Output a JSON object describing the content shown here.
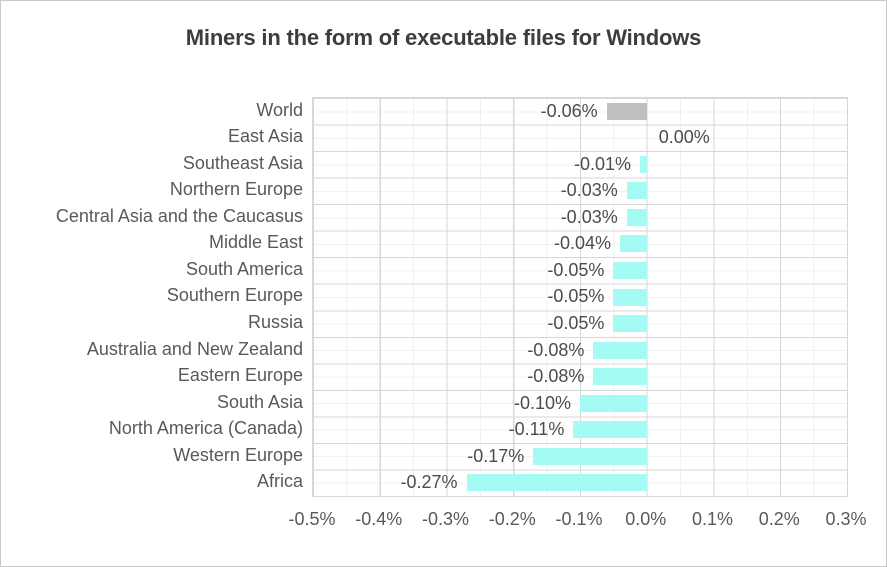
{
  "colors": {
    "bar_default": "#a3fbf3",
    "bar_world": "#bfbfbf",
    "grid_major": "#d7d7d7",
    "grid_minor": "#f1f1f1",
    "axis_text": "#595959",
    "value_label_text": "#4c4c4c",
    "title_text": "#3d3d3d",
    "background": "#ffffff"
  },
  "chart_data": {
    "type": "bar",
    "orientation": "horizontal",
    "title": "Miners in the form of executable files for Windows",
    "xlabel": "",
    "ylabel": "",
    "xlim": [
      -0.5,
      0.3
    ],
    "grid": "major and minor, both axes",
    "legend": "none",
    "highlighted_category": "World",
    "categories": [
      "World",
      "East Asia",
      "Southeast Asia",
      "Northern Europe",
      "Central Asia and the Caucasus",
      "Middle East",
      "South America",
      "Southern Europe",
      "Russia",
      "Australia and New Zealand",
      "Eastern Europe",
      "South Asia",
      "North America (Canada)",
      "Western Europe",
      "Africa"
    ],
    "values": [
      -0.06,
      0.0,
      -0.01,
      -0.03,
      -0.03,
      -0.04,
      -0.05,
      -0.05,
      -0.05,
      -0.08,
      -0.08,
      -0.1,
      -0.11,
      -0.17,
      -0.27
    ],
    "value_labels": [
      "-0.06%",
      "0.00%",
      "-0.01%",
      "-0.03%",
      "-0.03%",
      "-0.04%",
      "-0.05%",
      "-0.05%",
      "-0.05%",
      "-0.08%",
      "-0.08%",
      "-0.10%",
      "-0.11%",
      "-0.17%",
      "-0.27%"
    ],
    "x_tick_labels": [
      "-0.5%",
      "-0.4%",
      "-0.3%",
      "-0.2%",
      "-0.1%",
      "0.0%",
      "0.1%",
      "0.2%",
      "0.3%"
    ]
  }
}
